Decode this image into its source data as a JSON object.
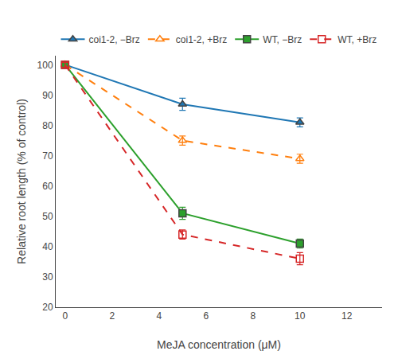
{
  "chart_data": {
    "type": "line",
    "xlabel": "MeJA concentration (μM)",
    "ylabel": "Relative root length (% of control)",
    "x": [
      0,
      5,
      10
    ],
    "series": [
      {
        "name": "coi1-2, −Brz",
        "values": [
          100,
          87,
          81
        ],
        "yerr": [
          0.8,
          2.0,
          1.5
        ],
        "marker": "triangle-up",
        "line_style": "solid"
      },
      {
        "name": "coi1-2, +Brz",
        "values": [
          100,
          75,
          69
        ],
        "yerr": [
          0.8,
          1.5,
          1.5
        ],
        "marker": "triangle-up-open",
        "line_style": "dash"
      },
      {
        "name": "WT, −Brz",
        "values": [
          100,
          51,
          41
        ],
        "yerr": [
          0.8,
          2.0,
          1.5
        ],
        "marker": "square",
        "line_style": "solid"
      },
      {
        "name": "WT, +Brz",
        "values": [
          100,
          44,
          36
        ],
        "yerr": [
          0.8,
          1.5,
          2.0
        ],
        "marker": "square-open",
        "line_style": "dash"
      }
    ],
    "xlim": [
      -0.4,
      13.5
    ],
    "xticks": [
      0,
      2,
      4,
      6,
      8,
      10,
      12
    ],
    "ylim": [
      20,
      103
    ],
    "yticks": [
      20,
      30,
      40,
      50,
      60,
      70,
      80,
      90,
      100
    ],
    "grid": false,
    "legend": "top"
  }
}
